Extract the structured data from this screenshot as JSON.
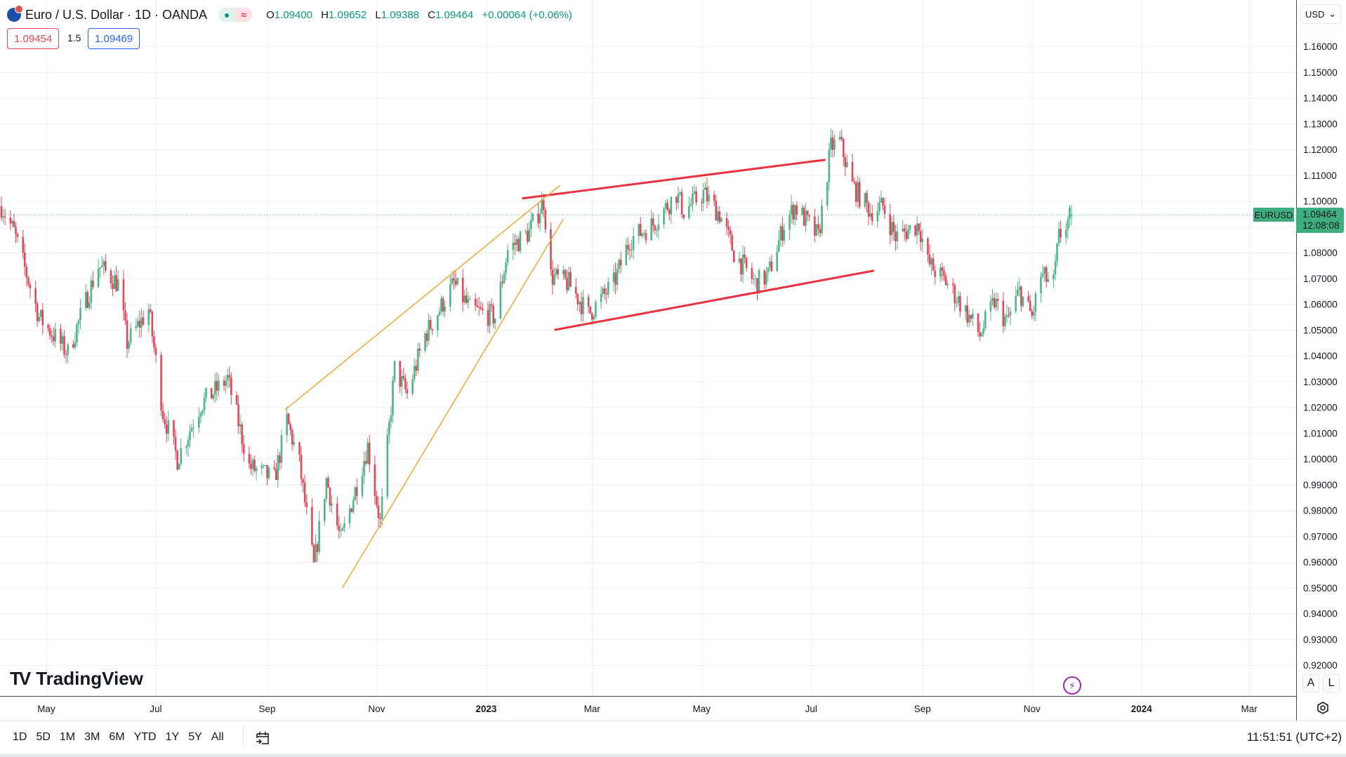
{
  "header": {
    "title": "Euro / U.S. Dollar · 1D · OANDA",
    "market_status_icon": "market-open-dot",
    "delay_icon": "approx-icon",
    "ohlc": {
      "o_label": "O",
      "o": "1.09400",
      "h_label": "H",
      "h": "1.09652",
      "l_label": "L",
      "l": "1.09388",
      "c_label": "C",
      "c": "1.09464",
      "change": "+0.00064 (+0.06%)"
    },
    "bid": "1.09454",
    "spread": "1.5",
    "ask": "1.09469"
  },
  "currency_select": "USD",
  "last_price": {
    "symbol": "EURUSD",
    "price": "1.09464",
    "countdown": "12:08:08"
  },
  "scale_buttons": {
    "auto": "A",
    "log": "L"
  },
  "logo_text": "TradingView",
  "bottom_bar": {
    "ranges": [
      "1D",
      "5D",
      "1M",
      "3M",
      "6M",
      "YTD",
      "1Y",
      "5Y",
      "All"
    ],
    "clock": "11:51:51 (UTC+2)"
  },
  "colors": {
    "up": "#4fb487",
    "down": "#e0485a",
    "trend_red": "#e8323f",
    "trend_orange": "#f0a830",
    "grid": "#eceef2"
  },
  "chart_data": {
    "type": "candlestick",
    "symbol": "EURUSD",
    "timeframe": "1D",
    "ylim": [
      0.915,
      1.165
    ],
    "y_ticks": [
      "1.16000",
      "1.15000",
      "1.14000",
      "1.13000",
      "1.12000",
      "1.11000",
      "1.10000",
      "1.09000",
      "1.08000",
      "1.07000",
      "1.06000",
      "1.05000",
      "1.04000",
      "1.03000",
      "1.02000",
      "1.01000",
      "1.00000",
      "0.99000",
      "0.98000",
      "0.97000",
      "0.96000",
      "0.95000",
      "0.94000",
      "0.93000",
      "0.92000"
    ],
    "x_ticks": [
      {
        "label": "May",
        "date": "2022-05-01"
      },
      {
        "label": "Jul",
        "date": "2022-07-01"
      },
      {
        "label": "Sep",
        "date": "2022-09-01"
      },
      {
        "label": "Nov",
        "date": "2022-11-01"
      },
      {
        "label": "2023",
        "date": "2023-01-01",
        "bold": true
      },
      {
        "label": "Mar",
        "date": "2023-03-01"
      },
      {
        "label": "May",
        "date": "2023-05-01"
      },
      {
        "label": "Jul",
        "date": "2023-07-01"
      },
      {
        "label": "Sep",
        "date": "2023-09-01"
      },
      {
        "label": "Nov",
        "date": "2023-11-01"
      },
      {
        "label": "2024",
        "date": "2024-01-01",
        "bold": true
      },
      {
        "label": "Mar",
        "date": "2024-03-01"
      }
    ],
    "x_range": [
      "2022-04-06",
      "2024-03-20"
    ],
    "grid": true,
    "approx_close_path": [
      [
        "2022-04-06",
        1.098
      ],
      [
        "2022-04-13",
        1.088
      ],
      [
        "2022-04-27",
        1.055
      ],
      [
        "2022-05-13",
        1.041
      ],
      [
        "2022-05-30",
        1.075
      ],
      [
        "2022-06-10",
        1.068
      ],
      [
        "2022-06-15",
        1.045
      ],
      [
        "2022-06-27",
        1.058
      ],
      [
        "2022-07-05",
        1.018
      ],
      [
        "2022-07-13",
        1.0
      ],
      [
        "2022-07-26",
        1.021
      ],
      [
        "2022-08-10",
        1.031
      ],
      [
        "2022-08-22",
        0.997
      ],
      [
        "2022-09-05",
        0.992
      ],
      [
        "2022-09-12",
        1.015
      ],
      [
        "2022-09-19",
        0.998
      ],
      [
        "2022-09-27",
        0.958
      ],
      [
        "2022-10-04",
        0.992
      ],
      [
        "2022-10-12",
        0.968
      ],
      [
        "2022-10-27",
        1.005
      ],
      [
        "2022-11-03",
        0.975
      ],
      [
        "2022-11-11",
        1.035
      ],
      [
        "2022-11-18",
        1.025
      ],
      [
        "2022-11-28",
        1.048
      ],
      [
        "2022-12-14",
        1.068
      ],
      [
        "2022-12-23",
        1.058
      ],
      [
        "2023-01-06",
        1.055
      ],
      [
        "2023-01-13",
        1.081
      ],
      [
        "2023-01-25",
        1.088
      ],
      [
        "2023-02-02",
        1.1
      ],
      [
        "2023-02-06",
        1.071
      ],
      [
        "2023-02-16",
        1.068
      ],
      [
        "2023-02-27",
        1.056
      ],
      [
        "2023-03-13",
        1.068
      ],
      [
        "2023-03-22",
        1.085
      ],
      [
        "2023-04-04",
        1.091
      ],
      [
        "2023-04-17",
        1.103
      ],
      [
        "2023-04-21",
        1.096
      ],
      [
        "2023-05-02",
        1.103
      ],
      [
        "2023-05-11",
        1.095
      ],
      [
        "2023-05-19",
        1.08
      ],
      [
        "2023-05-31",
        1.068
      ],
      [
        "2023-06-07",
        1.071
      ],
      [
        "2023-06-16",
        1.091
      ],
      [
        "2023-06-22",
        1.098
      ],
      [
        "2023-07-05",
        1.086
      ],
      [
        "2023-07-12",
        1.121
      ],
      [
        "2023-07-17",
        1.123
      ],
      [
        "2023-07-24",
        1.106
      ],
      [
        "2023-08-03",
        1.096
      ],
      [
        "2023-08-10",
        1.098
      ],
      [
        "2023-08-17",
        1.086
      ],
      [
        "2023-08-30",
        1.091
      ],
      [
        "2023-09-04",
        1.076
      ],
      [
        "2023-09-15",
        1.068
      ],
      [
        "2023-09-27",
        1.055
      ],
      [
        "2023-10-03",
        1.048
      ],
      [
        "2023-10-11",
        1.061
      ],
      [
        "2023-10-18",
        1.053
      ],
      [
        "2023-10-25",
        1.065
      ],
      [
        "2023-11-01",
        1.055
      ],
      [
        "2023-11-06",
        1.071
      ],
      [
        "2023-11-13",
        1.068
      ],
      [
        "2023-11-16",
        1.086
      ],
      [
        "2023-11-23",
        1.09464
      ]
    ],
    "last_close": 1.09464,
    "trendlines": [
      {
        "color": "red",
        "from": [
          "2023-01-21",
          1.101
        ],
        "to": [
          "2023-07-09",
          1.116
        ]
      },
      {
        "color": "red",
        "from": [
          "2023-02-08",
          1.05
        ],
        "to": [
          "2023-08-05",
          1.073
        ]
      },
      {
        "color": "orange",
        "from": [
          "2022-09-11",
          1.019
        ],
        "to": [
          "2023-02-11",
          1.106
        ]
      },
      {
        "color": "orange",
        "from": [
          "2022-10-13",
          0.95
        ],
        "to": [
          "2023-02-13",
          1.093
        ]
      }
    ]
  }
}
